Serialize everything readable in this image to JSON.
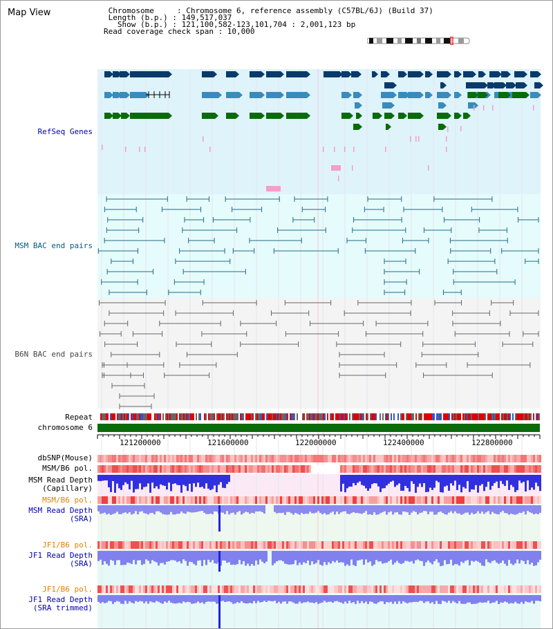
{
  "title": "Map View",
  "header": {
    "line1": " Chromosome     : Chromosome 6, reference assembly (C57BL/6J) (Build 37)",
    "line2": " Length (b.p.) : 149,517,037",
    "line3": "   Show (b.p.) : 121,100,582-123,101,704 : 2,001,123 bp",
    "line4": "Read coverage check span : 10,000"
  },
  "tracks": {
    "refseq": "RefSeq Genes",
    "msm_bac": "MSM BAC end pairs",
    "b6n_bac": "B6N BAC end pairs",
    "repeat": "Repeat",
    "chromosome": "chromosome 6",
    "dbsnp": "dbSNP(Mouse)",
    "msm_b6_pol": "MSM/B6 pol.",
    "msm_depth_cap": "MSM Read Depth\n(Capillary)",
    "msm_b6_pol2": "MSM/B6 pol.",
    "msm_depth_sra": "MSM Read Depth\n(SRA)",
    "jf1_b6_pol": "JF1/B6 pol.",
    "jf1_depth_sra": "JF1 Read Depth\n(SRA)",
    "jf1_b6_pol2": "JF1/B6 pol.",
    "jf1_depth_trim": "JF1 Read Depth\n(SRA trimmed)"
  },
  "axis": {
    "ticks": [
      "121200000",
      "121600000",
      "122000000",
      "122400000",
      "122800000"
    ]
  },
  "colors": {
    "refseq_bg": "#dff3fb",
    "msm_bac_bg": "#e6fbfb",
    "b6n_bac_bg": "#f4f4f4",
    "gene_dark": "#0a3a6b",
    "gene_mid": "#3a8bbb",
    "gene_green": "#0a6b0a",
    "pink": "#f59fc8",
    "bac_teal": "#1f6b87",
    "bac_gray": "#666666",
    "chrom_green": "#0a6b0a",
    "depth_blue": "#2222dd",
    "label_blue": "#0000aa",
    "label_teal": "#005a80",
    "label_orange": "#e08000"
  }
}
